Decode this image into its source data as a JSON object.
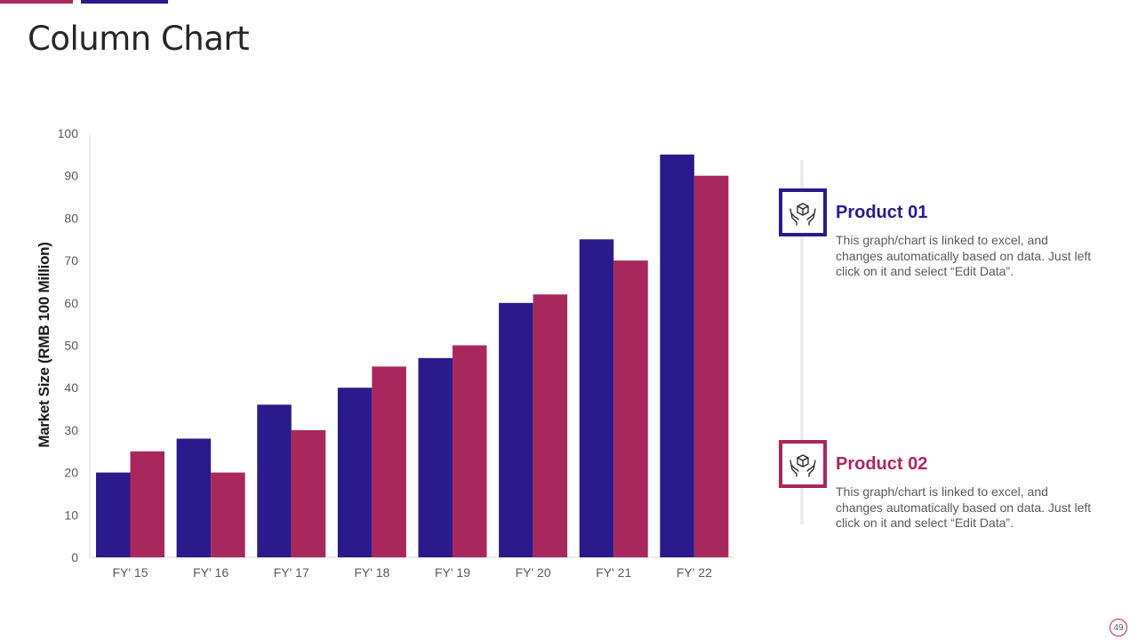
{
  "slide": {
    "title": "Column Chart",
    "page_number": "49"
  },
  "colors": {
    "product_01": "#2a1a8c",
    "product_02": "#a8285e",
    "accent_pink": "#a8285e",
    "accent_blue": "#2a1a8c"
  },
  "legend": [
    {
      "title": "Product 01",
      "text": "This graph/chart is linked to excel, and changes automatically based on data. Just left click on it and select “Edit Data”.",
      "icon": "hands-box-icon"
    },
    {
      "title": "Product 02",
      "text": "This graph/chart is linked to excel, and changes automatically based on data. Just left click on it and select “Edit Data”.",
      "icon": "hands-box-icon"
    }
  ],
  "chart_data": {
    "type": "bar",
    "title": "",
    "xlabel": "",
    "ylabel": "Market Size (RMB 100 Million)",
    "ylim": [
      0,
      100
    ],
    "yticks": [
      0,
      10,
      20,
      30,
      40,
      50,
      60,
      70,
      80,
      90,
      100
    ],
    "categories": [
      "FY' 15",
      "FY' 16",
      "FY' 17",
      "FY' 18",
      "FY' 19",
      "FY' 20",
      "FY' 21",
      "FY' 22"
    ],
    "series": [
      {
        "name": "Product 01",
        "values": [
          20,
          28,
          36,
          40,
          47,
          60,
          75,
          95
        ]
      },
      {
        "name": "Product 02",
        "values": [
          25,
          20,
          30,
          45,
          50,
          62,
          70,
          90
        ]
      }
    ],
    "grid": false,
    "legend_position": "right"
  }
}
